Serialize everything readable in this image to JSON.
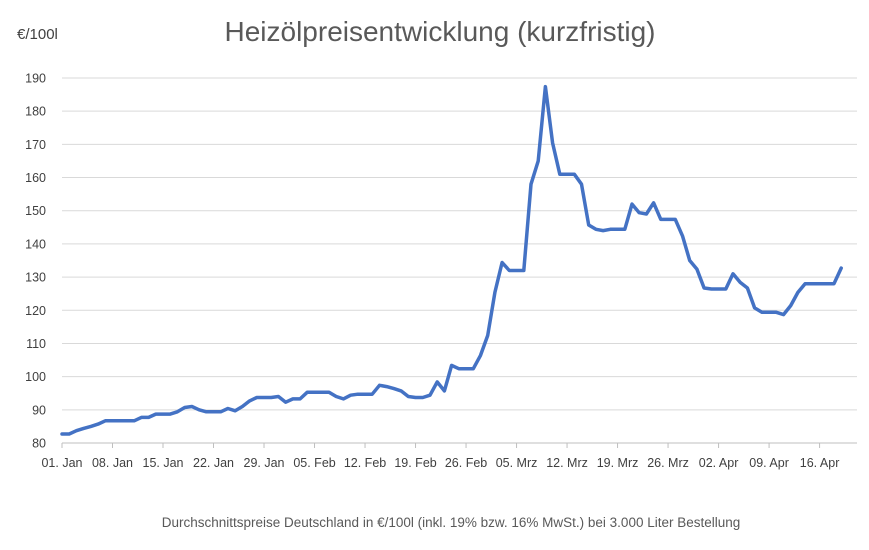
{
  "chart_data": {
    "type": "line",
    "title": "Heizölpreisentwicklung (kurzfristig)",
    "ylabel": "€/100l",
    "footnote": "Durchschnittspreise Deutschland in €/100l (inkl. 19% bzw. 16%  MwSt.) bei 3.000 Liter Bestellung",
    "ylim": [
      80,
      190
    ],
    "yticks": [
      80,
      90,
      100,
      110,
      120,
      130,
      140,
      150,
      160,
      170,
      180,
      190
    ],
    "xticks": [
      "01. Jan",
      "08. Jan",
      "15. Jan",
      "22. Jan",
      "29. Jan",
      "05. Feb",
      "12. Feb",
      "19. Feb",
      "26. Feb",
      "05. Mrz",
      "12. Mrz",
      "19. Mrz",
      "26. Mrz",
      "02. Apr",
      "09. Apr",
      "16. Apr"
    ],
    "grid": true,
    "legend": "none",
    "line_color": "#4472c4",
    "series": [
      {
        "values": [
          82.7,
          82.7,
          83.7,
          84.4,
          85.0,
          85.7,
          86.7,
          86.7,
          86.7,
          86.7,
          86.7,
          87.7,
          87.7,
          88.7,
          88.7,
          88.7,
          89.4,
          90.7,
          91.0,
          90.0,
          89.4,
          89.4,
          89.4,
          90.4,
          89.7,
          91.0,
          92.7,
          93.7,
          93.7,
          93.7,
          94.0,
          92.3,
          93.3,
          93.3,
          95.3,
          95.3,
          95.3,
          95.3,
          94.0,
          93.3,
          94.4,
          94.7,
          94.7,
          94.7,
          97.4,
          97.0,
          96.4,
          95.7,
          94.0,
          93.7,
          93.7,
          94.4,
          98.4,
          95.7,
          103.4,
          102.4,
          102.4,
          102.4,
          106.4,
          112.4,
          125.4,
          134.4,
          132.0,
          132.0,
          132.0,
          158.0,
          165.0,
          187.4,
          170.4,
          161.0,
          161.0,
          161.0,
          158.0,
          145.7,
          144.4,
          144.0,
          144.4,
          144.4,
          144.4,
          152.0,
          149.4,
          149.0,
          152.4,
          147.4,
          147.4,
          147.4,
          142.4,
          135.0,
          132.4,
          126.7,
          126.4,
          126.4,
          126.4,
          131.0,
          128.4,
          126.7,
          120.7,
          119.4,
          119.4,
          119.4,
          118.7,
          121.4,
          125.4,
          128.0,
          128.0,
          128.0,
          128.0,
          128.0,
          132.7
        ]
      }
    ]
  }
}
